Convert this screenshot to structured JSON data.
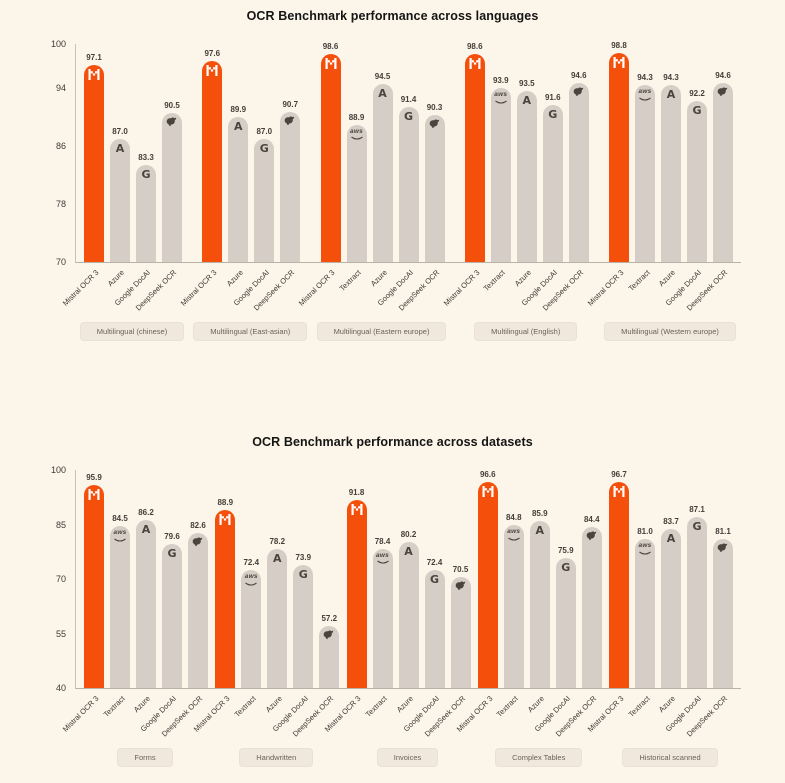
{
  "page": {
    "background": "#FCF5E9"
  },
  "colors": {
    "highlight_orange": "#F4500C",
    "bar_gray": "#D5CDC6",
    "pill_background": "#F0E8DC",
    "axis_line": "#C9C2B8",
    "text_dark": "#3c3a36"
  },
  "chart_data": [
    {
      "type": "bar",
      "title": "OCR Benchmark performance across languages",
      "xlabel": "",
      "ylabel": "",
      "ylim": [
        70,
        100
      ],
      "yticks": [
        100,
        94,
        86,
        78,
        70
      ],
      "grid": false,
      "legend": "none",
      "groups": [
        {
          "category": "Multilingual (chinese)",
          "bars": [
            {
              "label": "Mistral OCR 3",
              "value": 97.1,
              "icon": "mistral-icon",
              "highlight": true
            },
            {
              "label": "Azure",
              "value": 87.0,
              "icon": "azure-icon",
              "highlight": false
            },
            {
              "label": "Google DocAI",
              "value": 83.3,
              "icon": "google-icon",
              "highlight": false
            },
            {
              "label": "DeepSeek OCR",
              "value": 90.5,
              "icon": "deepseek-icon",
              "highlight": false
            }
          ]
        },
        {
          "category": "Multilingual (East-asian)",
          "bars": [
            {
              "label": "Mistral OCR 3",
              "value": 97.6,
              "icon": "mistral-icon",
              "highlight": true
            },
            {
              "label": "Azure",
              "value": 89.9,
              "icon": "azure-icon",
              "highlight": false
            },
            {
              "label": "Google DocAI",
              "value": 87.0,
              "icon": "google-icon",
              "highlight": false
            },
            {
              "label": "DeepSeek OCR",
              "value": 90.7,
              "icon": "deepseek-icon",
              "highlight": false
            }
          ]
        },
        {
          "category": "Multilingual (Eastern europe)",
          "bars": [
            {
              "label": "Mistral OCR 3",
              "value": 98.6,
              "icon": "mistral-icon",
              "highlight": true
            },
            {
              "label": "Textract",
              "value": 88.9,
              "icon": "aws-icon",
              "highlight": false
            },
            {
              "label": "Azure",
              "value": 94.5,
              "icon": "azure-icon",
              "highlight": false
            },
            {
              "label": "Google DocAI",
              "value": 91.4,
              "icon": "google-icon",
              "highlight": false
            },
            {
              "label": "DeepSeek OCR",
              "value": 90.3,
              "icon": "deepseek-icon",
              "highlight": false
            }
          ]
        },
        {
          "category": "Multilingual (English)",
          "bars": [
            {
              "label": "Mistral OCR 3",
              "value": 98.6,
              "icon": "mistral-icon",
              "highlight": true
            },
            {
              "label": "Textract",
              "value": 93.9,
              "icon": "aws-icon",
              "highlight": false
            },
            {
              "label": "Azure",
              "value": 93.5,
              "icon": "azure-icon",
              "highlight": false
            },
            {
              "label": "Google DocAI",
              "value": 91.6,
              "icon": "google-icon",
              "highlight": false
            },
            {
              "label": "DeepSeek OCR",
              "value": 94.6,
              "icon": "deepseek-icon",
              "highlight": false
            }
          ]
        },
        {
          "category": "Multilingual (Western europe)",
          "bars": [
            {
              "label": "Mistral OCR 3",
              "value": 98.8,
              "icon": "mistral-icon",
              "highlight": true
            },
            {
              "label": "Textract",
              "value": 94.3,
              "icon": "aws-icon",
              "highlight": false
            },
            {
              "label": "Azure",
              "value": 94.3,
              "icon": "azure-icon",
              "highlight": false
            },
            {
              "label": "Google DocAI",
              "value": 92.2,
              "icon": "google-icon",
              "highlight": false
            },
            {
              "label": "DeepSeek OCR",
              "value": 94.6,
              "icon": "deepseek-icon",
              "highlight": false
            }
          ]
        }
      ]
    },
    {
      "type": "bar",
      "title": "OCR Benchmark performance across datasets",
      "xlabel": "",
      "ylabel": "",
      "ylim": [
        40,
        100
      ],
      "yticks": [
        100,
        85,
        70,
        55,
        40
      ],
      "grid": false,
      "legend": "none",
      "groups": [
        {
          "category": "Forms",
          "bars": [
            {
              "label": "Mistral OCR 3",
              "value": 95.9,
              "icon": "mistral-icon",
              "highlight": true
            },
            {
              "label": "Textract",
              "value": 84.5,
              "icon": "aws-icon",
              "highlight": false
            },
            {
              "label": "Azure",
              "value": 86.2,
              "icon": "azure-icon",
              "highlight": false
            },
            {
              "label": "Google DocAI",
              "value": 79.6,
              "icon": "google-icon",
              "highlight": false
            },
            {
              "label": "DeepSeek OCR",
              "value": 82.6,
              "icon": "deepseek-icon",
              "highlight": false
            }
          ]
        },
        {
          "category": "Handwritten",
          "bars": [
            {
              "label": "Mistral OCR 3",
              "value": 88.9,
              "icon": "mistral-icon",
              "highlight": true
            },
            {
              "label": "Textract",
              "value": 72.4,
              "icon": "aws-icon",
              "highlight": false
            },
            {
              "label": "Azure",
              "value": 78.2,
              "icon": "azure-icon",
              "highlight": false
            },
            {
              "label": "Google DocAI",
              "value": 73.9,
              "icon": "google-icon",
              "highlight": false
            },
            {
              "label": "DeepSeek OCR",
              "value": 57.2,
              "icon": "deepseek-icon",
              "highlight": false
            }
          ]
        },
        {
          "category": "Invoices",
          "bars": [
            {
              "label": "Mistral OCR 3",
              "value": 91.8,
              "icon": "mistral-icon",
              "highlight": true
            },
            {
              "label": "Textract",
              "value": 78.4,
              "icon": "aws-icon",
              "highlight": false
            },
            {
              "label": "Azure",
              "value": 80.2,
              "icon": "azure-icon",
              "highlight": false
            },
            {
              "label": "Google DocAI",
              "value": 72.4,
              "icon": "google-icon",
              "highlight": false
            },
            {
              "label": "DeepSeek OCR",
              "value": 70.5,
              "icon": "deepseek-icon",
              "highlight": false
            }
          ]
        },
        {
          "category": "Complex Tables",
          "bars": [
            {
              "label": "Mistral OCR 3",
              "value": 96.6,
              "icon": "mistral-icon",
              "highlight": true
            },
            {
              "label": "Textract",
              "value": 84.8,
              "icon": "aws-icon",
              "highlight": false
            },
            {
              "label": "Azure",
              "value": 85.9,
              "icon": "azure-icon",
              "highlight": false
            },
            {
              "label": "Google DocAI",
              "value": 75.9,
              "icon": "google-icon",
              "highlight": false
            },
            {
              "label": "DeepSeek OCR",
              "value": 84.4,
              "icon": "deepseek-icon",
              "highlight": false
            }
          ]
        },
        {
          "category": "Historical scanned",
          "bars": [
            {
              "label": "Mistral OCR 3",
              "value": 96.7,
              "icon": "mistral-icon",
              "highlight": true
            },
            {
              "label": "Textract",
              "value": 81.0,
              "icon": "aws-icon",
              "highlight": false
            },
            {
              "label": "Azure",
              "value": 83.7,
              "icon": "azure-icon",
              "highlight": false
            },
            {
              "label": "Google DocAI",
              "value": 87.1,
              "icon": "google-icon",
              "highlight": false
            },
            {
              "label": "DeepSeek OCR",
              "value": 81.1,
              "icon": "deepseek-icon",
              "highlight": false
            }
          ]
        }
      ]
    }
  ]
}
